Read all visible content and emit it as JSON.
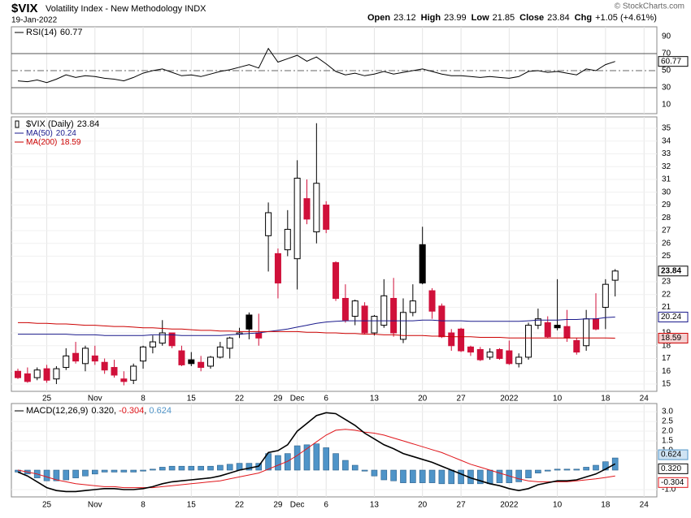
{
  "chart_data": {
    "type": "candlestick",
    "symbol": "$VIX",
    "title": "Volatility Index - New Methodology INDX",
    "date": "19-Jan-2022",
    "copyright": "© StockCharts.com",
    "quote_labels": {
      "open": "Open",
      "high": "High",
      "low": "Low",
      "close": "Close",
      "chg": "Chg"
    },
    "change": "+1.05 (+4.61%)",
    "name": "$VIX (Daily)",
    "colors": {
      "up": "#000000",
      "down": "#d0103a",
      "hollow": "#ffffff"
    },
    "xlim": [
      -0.675,
      66.33
    ],
    "xticks": [
      {
        "value": 3,
        "label": "25"
      },
      {
        "value": 8,
        "label": "Nov"
      },
      {
        "value": 13,
        "label": "8"
      },
      {
        "value": 18,
        "label": "15"
      },
      {
        "value": 23,
        "label": "22"
      },
      {
        "value": 27,
        "label": "29"
      },
      {
        "value": 29,
        "label": "Dec"
      },
      {
        "value": 32,
        "label": "6"
      },
      {
        "value": 37,
        "label": "13"
      },
      {
        "value": 42,
        "label": "20"
      },
      {
        "value": 46,
        "label": "27"
      },
      {
        "value": 51,
        "label": "2022"
      },
      {
        "value": 56,
        "label": "10"
      },
      {
        "value": 61,
        "label": "18"
      },
      {
        "value": 65,
        "label": "24"
      }
    ],
    "grid": true,
    "ylim": [
      14.43,
      35.89
    ],
    "yticks": [
      15,
      16,
      17,
      18,
      19,
      21,
      22,
      23,
      25,
      26,
      27,
      28,
      29,
      30,
      31,
      32,
      33,
      34,
      35
    ],
    "open": [
      16.0,
      15.8,
      15.5,
      16.2,
      15.4,
      16.3,
      17.4,
      16.6,
      17.2,
      16.7,
      16.3,
      15.4,
      15.3,
      16.8,
      17.9,
      18.2,
      19.0,
      17.6,
      16.9,
      16.7,
      16.4,
      17.1,
      17.8,
      18.9,
      20.4,
      19.0,
      26.6,
      25.2,
      25.5,
      24.8,
      29.5,
      26.9,
      29.0,
      24.5,
      21.7,
      20.3,
      21.1,
      19.0,
      19.6,
      21.7,
      18.5,
      20.6,
      25.9,
      22.3,
      21.1,
      19.0,
      19.3,
      17.9,
      17.7,
      17.1,
      17.7,
      17.6,
      16.6,
      17.1,
      19.6,
      19.8,
      19.6,
      19.5,
      18.4,
      18.0,
      20.1,
      21.0,
      23.12
    ],
    "high": [
      16.2,
      16.3,
      16.3,
      16.5,
      16.4,
      17.8,
      18.3,
      18.0,
      18.0,
      17.0,
      16.9,
      16.0,
      16.6,
      18.0,
      18.8,
      20.0,
      19.0,
      18.0,
      17.5,
      17.2,
      17.2,
      18.3,
      18.7,
      19.4,
      20.6,
      20.5,
      29.2,
      25.6,
      28.6,
      32.5,
      31.0,
      35.4,
      29.3,
      24.6,
      22.8,
      21.6,
      21.4,
      20.4,
      23.2,
      23.3,
      21.7,
      22.8,
      27.3,
      22.5,
      21.3,
      19.3,
      19.4,
      18.0,
      17.9,
      17.8,
      17.8,
      18.4,
      17.4,
      19.8,
      20.9,
      20.3,
      23.2,
      20.8,
      18.6,
      20.8,
      22.1,
      23.2,
      23.99
    ],
    "low": [
      15.4,
      15.1,
      15.3,
      15.1,
      15.0,
      16.1,
      16.6,
      16.0,
      16.5,
      15.8,
      15.5,
      14.9,
      15.0,
      16.2,
      17.4,
      18.0,
      17.8,
      16.4,
      16.4,
      16.0,
      16.2,
      17.0,
      17.0,
      18.6,
      18.5,
      18.0,
      23.8,
      21.7,
      25.0,
      22.4,
      27.5,
      26.0,
      26.8,
      21.5,
      19.8,
      19.6,
      18.9,
      18.8,
      19.4,
      18.7,
      18.2,
      20.3,
      22.8,
      20.1,
      18.6,
      17.6,
      17.5,
      17.2,
      16.8,
      16.9,
      16.9,
      16.5,
      16.3,
      16.9,
      19.3,
      18.6,
      19.2,
      18.3,
      17.3,
      17.6,
      19.2,
      19.3,
      21.85
    ],
    "close": [
      15.5,
      15.2,
      16.1,
      15.3,
      16.2,
      17.2,
      16.8,
      17.8,
      16.8,
      16.1,
      15.7,
      15.2,
      16.4,
      17.9,
      18.3,
      19.0,
      18.0,
      16.5,
      16.6,
      16.3,
      17.1,
      17.9,
      18.6,
      19.0,
      19.3,
      18.6,
      28.4,
      22.9,
      27.1,
      31.1,
      27.9,
      30.7,
      27.1,
      21.7,
      20.0,
      21.5,
      19.0,
      20.3,
      21.9,
      19.0,
      20.6,
      21.5,
      22.9,
      20.7,
      18.7,
      18.0,
      17.6,
      17.5,
      16.9,
      17.5,
      17.0,
      16.6,
      17.1,
      19.6,
      20.1,
      18.7,
      19.4,
      18.6,
      17.5,
      20.1,
      19.3,
      22.8,
      23.84
    ],
    "overlays": [
      {
        "name": "MA(50)",
        "color": "#1a1a8c",
        "values": [
          18.9,
          18.9,
          18.9,
          18.9,
          18.9,
          18.9,
          18.85,
          18.85,
          18.85,
          18.8,
          18.8,
          18.8,
          18.8,
          18.8,
          18.85,
          18.85,
          18.85,
          18.8,
          18.8,
          18.8,
          18.8,
          18.8,
          18.85,
          18.9,
          18.95,
          19.0,
          19.1,
          19.2,
          19.3,
          19.45,
          19.6,
          19.75,
          19.85,
          19.9,
          19.95,
          19.95,
          19.95,
          19.95,
          19.95,
          19.95,
          19.95,
          19.95,
          20.0,
          20.0,
          19.95,
          19.95,
          19.95,
          19.9,
          19.9,
          19.9,
          19.9,
          19.9,
          19.9,
          19.95,
          20.0,
          20.0,
          20.0,
          20.05,
          20.05,
          20.1,
          20.1,
          20.2,
          20.24
        ]
      },
      {
        "name": "MA(200)",
        "color": "#cc0000",
        "values": [
          19.8,
          19.8,
          19.75,
          19.75,
          19.7,
          19.7,
          19.65,
          19.6,
          19.6,
          19.55,
          19.5,
          19.5,
          19.45,
          19.4,
          19.4,
          19.35,
          19.3,
          19.3,
          19.25,
          19.2,
          19.2,
          19.15,
          19.15,
          19.1,
          19.1,
          19.1,
          19.1,
          19.1,
          19.1,
          19.1,
          19.05,
          19.05,
          19.0,
          19.0,
          18.95,
          18.95,
          18.9,
          18.9,
          18.85,
          18.85,
          18.8,
          18.8,
          18.8,
          18.75,
          18.75,
          18.7,
          18.7,
          18.7,
          18.65,
          18.65,
          18.65,
          18.6,
          18.6,
          18.6,
          18.6,
          18.6,
          18.6,
          18.6,
          18.6,
          18.6,
          18.6,
          18.6,
          18.59
        ]
      }
    ],
    "rsi": {
      "name": "RSI(14)",
      "color": "#000000",
      "ylim": [
        -0.5,
        101.4
      ],
      "yticks": [
        10,
        30,
        50,
        70,
        90
      ],
      "values": [
        38,
        37,
        39,
        36,
        40,
        45,
        42,
        44,
        43,
        41,
        40,
        38,
        42,
        47,
        50,
        52,
        48,
        44,
        45,
        43,
        46,
        49,
        51,
        54,
        57,
        53,
        76,
        60,
        64,
        68,
        61,
        66,
        58,
        49,
        45,
        47,
        44,
        46,
        49,
        46,
        48,
        50,
        52,
        49,
        46,
        44,
        44,
        43,
        42,
        43,
        42,
        41,
        43,
        49,
        50,
        48,
        49,
        47,
        45,
        52,
        50,
        57,
        60.77
      ]
    },
    "macd": {
      "name": "MACD(12,26,9)",
      "separator": ", ",
      "ylim": [
        -1.375,
        3.42
      ],
      "yticks": [
        {
          "value": 3.0,
          "label": "3.0"
        },
        {
          "value": 2.5,
          "label": "2.5"
        },
        {
          "value": 2.0,
          "label": "2.0"
        },
        {
          "value": 1.5,
          "label": "1.5"
        },
        {
          "value": 1.0,
          "label": "1.0"
        },
        {
          "value": -1.0,
          "label": "-1.0"
        }
      ],
      "series": [
        {
          "name": "MACD",
          "color": "#000000",
          "values": [
            -0.1,
            -0.3,
            -0.6,
            -0.9,
            -1.05,
            -1.1,
            -1.1,
            -1.05,
            -1.0,
            -0.95,
            -0.95,
            -1.0,
            -1.0,
            -0.95,
            -0.85,
            -0.7,
            -0.6,
            -0.55,
            -0.5,
            -0.45,
            -0.4,
            -0.3,
            -0.15,
            0.0,
            0.1,
            0.2,
            0.9,
            1.0,
            1.3,
            2.0,
            2.4,
            2.8,
            2.95,
            2.9,
            2.6,
            2.3,
            1.9,
            1.6,
            1.3,
            1.1,
            0.85,
            0.7,
            0.55,
            0.4,
            0.2,
            0.0,
            -0.2,
            -0.4,
            -0.55,
            -0.7,
            -0.8,
            -0.95,
            -1.05,
            -0.95,
            -0.75,
            -0.65,
            -0.55,
            -0.55,
            -0.5,
            -0.35,
            -0.2,
            0.05,
            0.32
          ],
          "value_labels": [
            null,
            null,
            null,
            null,
            null,
            null,
            null,
            null,
            null,
            null,
            null,
            null,
            null,
            null,
            null,
            null,
            null,
            null,
            null,
            null,
            null,
            null,
            null,
            null,
            null,
            null,
            null,
            null,
            null,
            null,
            null,
            null,
            null,
            null,
            null,
            null,
            null,
            null,
            null,
            null,
            null,
            null,
            null,
            null,
            null,
            null,
            null,
            null,
            null,
            null,
            null,
            null,
            null,
            null,
            null,
            null,
            null,
            null,
            null,
            null,
            null,
            null,
            "0.320"
          ]
        },
        {
          "name": "Signal",
          "color": "#e0161b",
          "values": [
            0.0,
            -0.1,
            -0.2,
            -0.35,
            -0.5,
            -0.6,
            -0.7,
            -0.75,
            -0.8,
            -0.85,
            -0.85,
            -0.9,
            -0.9,
            -0.9,
            -0.9,
            -0.85,
            -0.8,
            -0.75,
            -0.7,
            -0.65,
            -0.6,
            -0.55,
            -0.45,
            -0.35,
            -0.25,
            -0.15,
            0.05,
            0.25,
            0.45,
            0.75,
            1.1,
            1.45,
            1.8,
            2.05,
            2.1,
            2.05,
            1.95,
            1.9,
            1.8,
            1.65,
            1.5,
            1.35,
            1.2,
            1.05,
            0.9,
            0.7,
            0.5,
            0.3,
            0.15,
            0.0,
            -0.15,
            -0.3,
            -0.45,
            -0.55,
            -0.6,
            -0.6,
            -0.6,
            -0.6,
            -0.55,
            -0.5,
            -0.45,
            -0.38,
            -0.304
          ]
        },
        {
          "name": "Histogram",
          "color": "#4f94c8",
          "values": [
            -0.1,
            -0.2,
            -0.4,
            -0.55,
            -0.55,
            -0.5,
            -0.4,
            -0.3,
            -0.2,
            -0.1,
            -0.1,
            -0.1,
            -0.1,
            -0.05,
            0.05,
            0.15,
            0.2,
            0.2,
            0.2,
            0.2,
            0.2,
            0.25,
            0.3,
            0.35,
            0.35,
            0.35,
            0.85,
            0.75,
            0.85,
            1.25,
            1.3,
            1.35,
            1.15,
            0.85,
            0.5,
            0.25,
            -0.05,
            -0.3,
            -0.5,
            -0.55,
            -0.65,
            -0.65,
            -0.65,
            -0.65,
            -0.7,
            -0.7,
            -0.7,
            -0.7,
            -0.7,
            -0.7,
            -0.65,
            -0.65,
            -0.6,
            -0.4,
            -0.15,
            -0.05,
            0.05,
            0.05,
            0.05,
            0.15,
            0.25,
            0.43,
            0.624
          ]
        }
      ]
    }
  }
}
